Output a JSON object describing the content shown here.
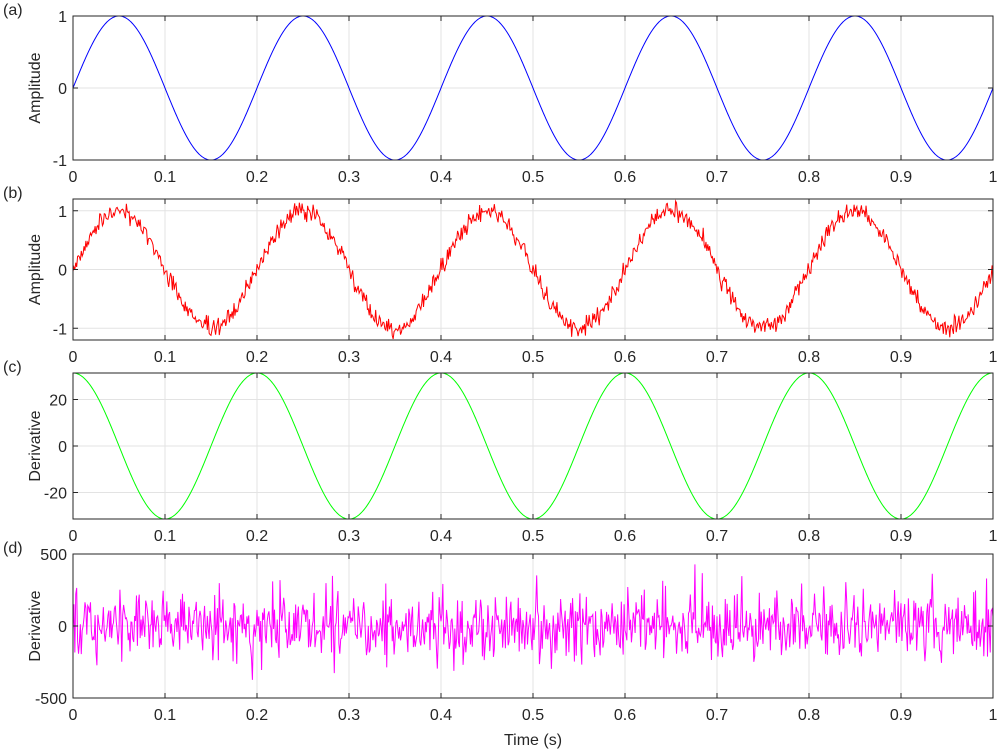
{
  "chart_data": [
    {
      "panel_label": "(a)",
      "type": "line",
      "ylabel": "Amplitude",
      "xlabel": "",
      "xlim": [
        0,
        1
      ],
      "ylim": [
        -1,
        1
      ],
      "xticks": [
        0,
        0.1,
        0.2,
        0.3,
        0.4,
        0.5,
        0.6,
        0.7,
        0.8,
        0.9,
        1
      ],
      "xtick_labels": [
        "0",
        "0.1",
        "0.2",
        "0.3",
        "0.4",
        "0.5",
        "0.6",
        "0.7",
        "0.8",
        "0.9",
        "1"
      ],
      "yticks": [
        -1,
        0,
        1
      ],
      "ytick_labels": [
        "-1",
        "0",
        "1"
      ],
      "grid": true,
      "color": "#0000ff",
      "series": [
        {
          "function": "sin",
          "frequency_hz": 5,
          "amplitude": 1,
          "sample_rate_hz": 1000,
          "noise": "none"
        }
      ]
    },
    {
      "panel_label": "(b)",
      "type": "line",
      "ylabel": "Amplitude",
      "xlabel": "",
      "xlim": [
        0,
        1
      ],
      "ylim": [
        -1.2,
        1.2
      ],
      "xticks": [
        0,
        0.1,
        0.2,
        0.3,
        0.4,
        0.5,
        0.6,
        0.7,
        0.8,
        0.9,
        1
      ],
      "xtick_labels": [
        "0",
        "0.1",
        "0.2",
        "0.3",
        "0.4",
        "0.5",
        "0.6",
        "0.7",
        "0.8",
        "0.9",
        "1"
      ],
      "yticks": [
        -1,
        0,
        1
      ],
      "ytick_labels": [
        "-1",
        "0",
        "1"
      ],
      "grid": true,
      "color": "#ff0000",
      "series": [
        {
          "function": "sin",
          "frequency_hz": 5,
          "amplitude": 1,
          "sample_rate_hz": 1000,
          "noise": "gaussian",
          "noise_std": 0.08
        }
      ]
    },
    {
      "panel_label": "(c)",
      "type": "line",
      "ylabel": "Derivative",
      "xlabel": "",
      "xlim": [
        0,
        1
      ],
      "ylim": [
        -31.4,
        31.4
      ],
      "xticks": [
        0,
        0.1,
        0.2,
        0.3,
        0.4,
        0.5,
        0.6,
        0.7,
        0.8,
        0.9,
        1
      ],
      "xtick_labels": [
        "0",
        "0.1",
        "0.2",
        "0.3",
        "0.4",
        "0.5",
        "0.6",
        "0.7",
        "0.8",
        "0.9",
        "1"
      ],
      "yticks": [
        -20,
        0,
        20
      ],
      "ytick_labels": [
        "-20",
        "0",
        "20"
      ],
      "grid": true,
      "color": "#00ff00",
      "series": [
        {
          "function": "cos",
          "frequency_hz": 5,
          "amplitude": 31.416,
          "sample_rate_hz": 1000,
          "noise": "none"
        }
      ]
    },
    {
      "panel_label": "(d)",
      "type": "line",
      "ylabel": "Derivative",
      "xlabel": "Time (s)",
      "xlim": [
        0,
        1
      ],
      "ylim": [
        -500,
        500
      ],
      "xticks": [
        0,
        0.1,
        0.2,
        0.3,
        0.4,
        0.5,
        0.6,
        0.7,
        0.8,
        0.9,
        1
      ],
      "xtick_labels": [
        "0",
        "0.1",
        "0.2",
        "0.3",
        "0.4",
        "0.5",
        "0.6",
        "0.7",
        "0.8",
        "0.9",
        "1"
      ],
      "yticks": [
        -500,
        0,
        500
      ],
      "ytick_labels": [
        "-500",
        "0",
        "500"
      ],
      "grid": true,
      "color": "#ff00ff",
      "series": [
        {
          "function": "noisy_derivative",
          "sample_rate_hz": 1000,
          "noise": "gaussian",
          "noise_std": 120
        }
      ]
    }
  ]
}
